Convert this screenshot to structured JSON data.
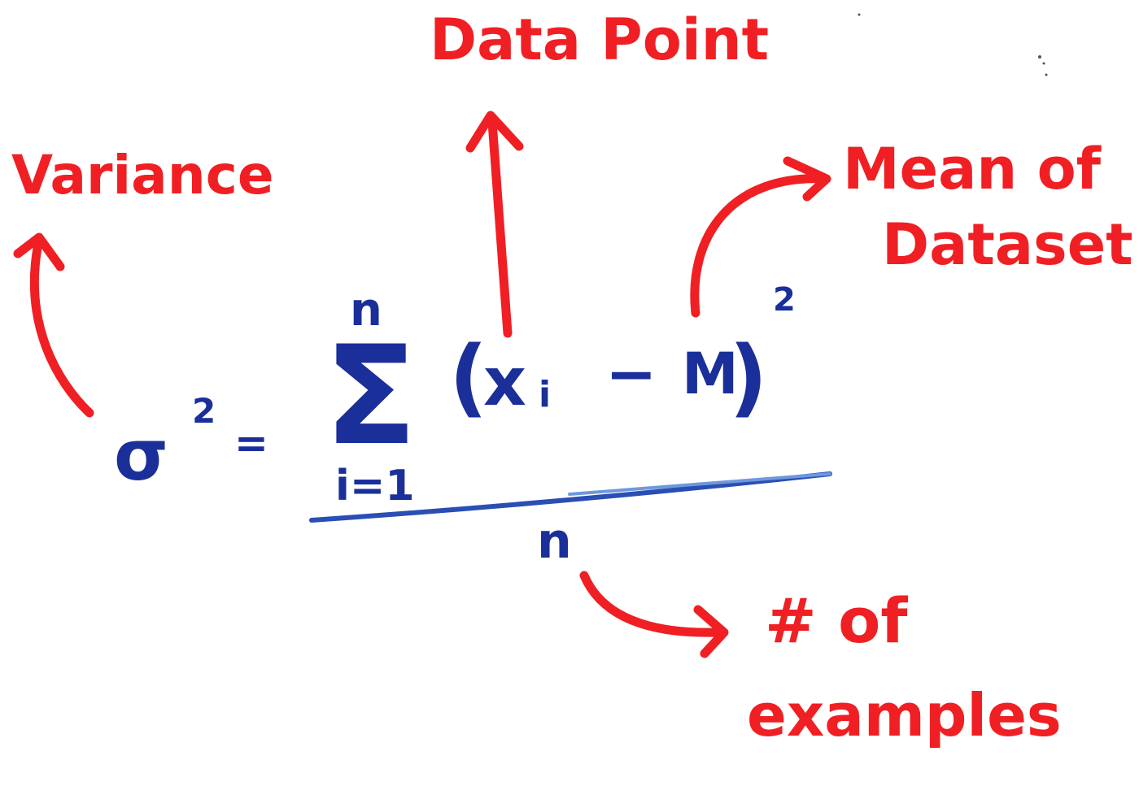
{
  "colors": {
    "annotation": "#f01f23",
    "formula": "#1a2f9a",
    "formula_light": "#4c7bd0",
    "background": "#ffffff"
  },
  "labels": {
    "variance": "Variance",
    "data_point": "Data Point",
    "mean_line1": "Mean of",
    "mean_line2": "Dataset",
    "count_line1": "# of",
    "count_line2": "examples"
  },
  "formula": {
    "sigma": "σ",
    "sigma_exp": "2",
    "equals": "=",
    "sum_upper": "n",
    "sum_symbol": "Σ",
    "sum_lower": "i=1",
    "open_paren": "(",
    "x": "x",
    "x_sub": "i",
    "minus": "−",
    "mu": "M",
    "close_paren": ")",
    "outer_exp": "2",
    "denominator": "n"
  }
}
